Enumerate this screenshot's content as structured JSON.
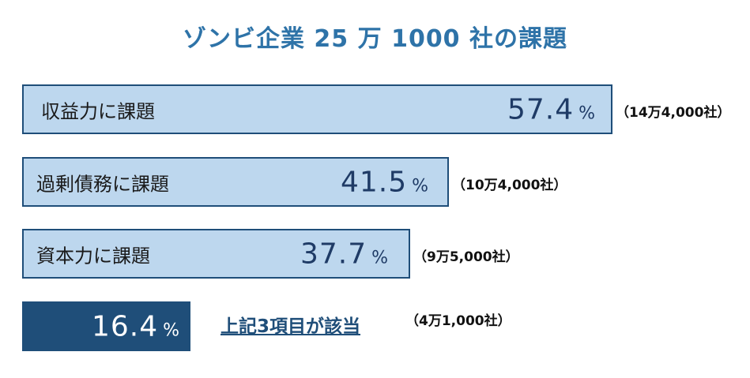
{
  "chart_data": {
    "type": "bar",
    "orientation": "horizontal",
    "title": "ゾンビ企業 25 万 1000 社の課題",
    "unit": "%",
    "bars": [
      {
        "label": "収益力に課題",
        "value": 57.4,
        "value_text": "57.4",
        "pct": "%",
        "count": "（14万4,000社）"
      },
      {
        "label": "過剰債務に課題",
        "value": 41.5,
        "value_text": "41.5",
        "pct": "%",
        "count": "（10万4,000社）"
      },
      {
        "label": "資本力に課題",
        "value": 37.7,
        "value_text": "37.7",
        "pct": "%",
        "count": "（9万5,000社）"
      },
      {
        "label": "",
        "value": 16.4,
        "value_text": "16.4",
        "pct": "%",
        "count": "（4万1,000社）",
        "note": "上記3項目が該当"
      }
    ],
    "colors": {
      "bar_fill": "#bdd7ee",
      "bar_border": "#1f4e79",
      "highlight_fill": "#1f4e79",
      "title": "#2e73a8"
    }
  }
}
